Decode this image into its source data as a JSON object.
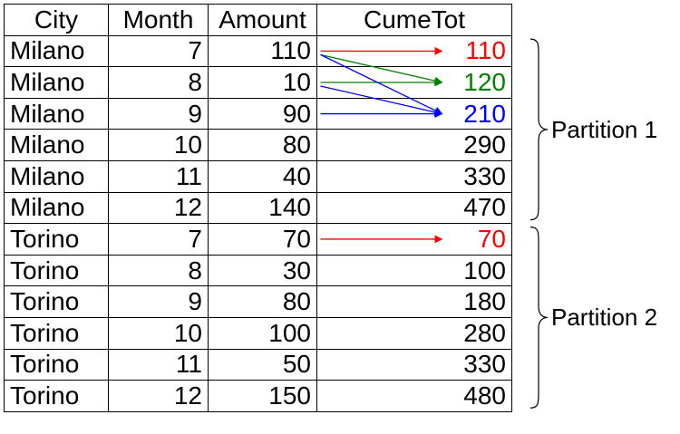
{
  "table": {
    "headers": [
      "City",
      "Month",
      "Amount",
      "CumeTot"
    ],
    "rows": [
      [
        "Milano",
        "7",
        "110",
        "110"
      ],
      [
        "Milano",
        "8",
        "10",
        "120"
      ],
      [
        "Milano",
        "9",
        "90",
        "210"
      ],
      [
        "Milano",
        "10",
        "80",
        "290"
      ],
      [
        "Milano",
        "11",
        "40",
        "330"
      ],
      [
        "Milano",
        "12",
        "140",
        "470"
      ],
      [
        "Torino",
        "7",
        "70",
        "70"
      ],
      [
        "Torino",
        "8",
        "30",
        "100"
      ],
      [
        "Torino",
        "9",
        "80",
        "180"
      ],
      [
        "Torino",
        "10",
        "100",
        "280"
      ],
      [
        "Torino",
        "11",
        "50",
        "330"
      ],
      [
        "Torino",
        "12",
        "150",
        "480"
      ]
    ]
  },
  "highlights": [
    {
      "row": 0,
      "color": "#ff0000"
    },
    {
      "row": 1,
      "color": "#008000"
    },
    {
      "row": 2,
      "color": "#0000ff"
    },
    {
      "row": 6,
      "color": "#ff0000"
    }
  ],
  "arrows": [
    {
      "from_row": 0,
      "to_row": 0,
      "color": "#ff0000"
    },
    {
      "from_row": 0,
      "to_row": 1,
      "color": "#008000"
    },
    {
      "from_row": 1,
      "to_row": 1,
      "color": "#008000"
    },
    {
      "from_row": 0,
      "to_row": 2,
      "color": "#0000ff"
    },
    {
      "from_row": 1,
      "to_row": 2,
      "color": "#0000ff"
    },
    {
      "from_row": 2,
      "to_row": 2,
      "color": "#0000ff"
    },
    {
      "from_row": 6,
      "to_row": 6,
      "color": "#ff0000"
    }
  ],
  "partitions": [
    {
      "label": "Partition 1",
      "start_row": 0,
      "end_row": 5
    },
    {
      "label": "Partition 2",
      "start_row": 6,
      "end_row": 11
    }
  ]
}
